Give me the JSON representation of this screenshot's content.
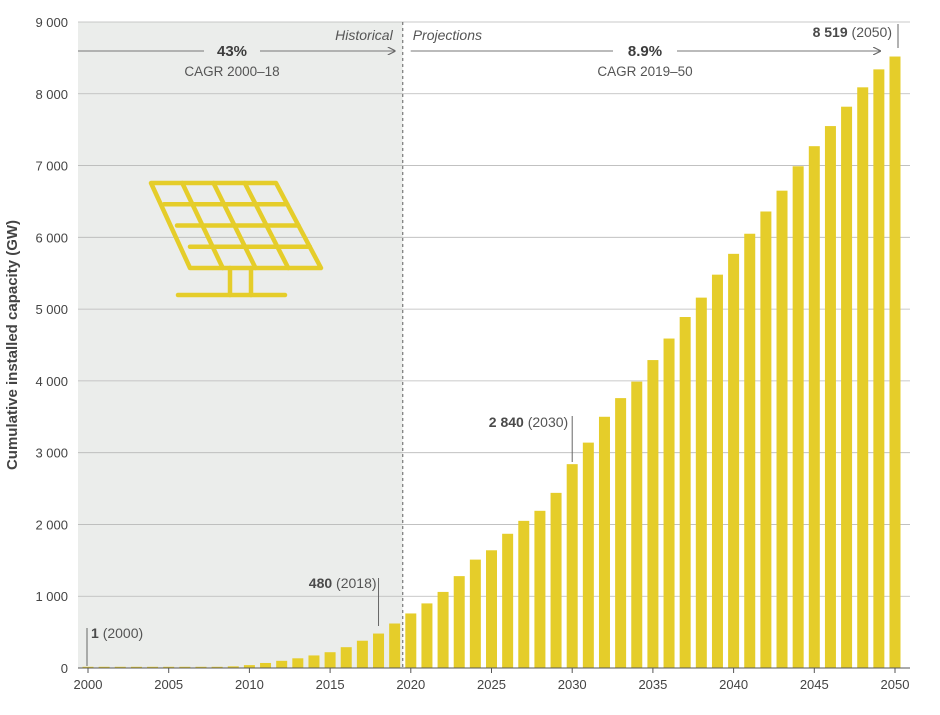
{
  "chart_data": {
    "type": "bar",
    "ylabel": "Cumulative installed capacity (GW)",
    "ylim": [
      0,
      9000
    ],
    "yticks": [
      0,
      1000,
      2000,
      3000,
      4000,
      5000,
      6000,
      7000,
      8000,
      9000
    ],
    "ytick_labels": [
      "0",
      "1 000",
      "2 000",
      "3 000",
      "4 000",
      "5 000",
      "6 000",
      "7 000",
      "8 000",
      "9 000"
    ],
    "xticks": [
      2000,
      2005,
      2010,
      2015,
      2020,
      2025,
      2030,
      2035,
      2040,
      2045,
      2050
    ],
    "xtick_labels": [
      "2000",
      "2005",
      "2010",
      "2015",
      "2020",
      "2025",
      "2030",
      "2035",
      "2040",
      "2045",
      "2050"
    ],
    "grid": true,
    "bar_color": "#e5cd2a",
    "historical_shade": "#ebedeb",
    "x": [
      2000,
      2001,
      2002,
      2003,
      2004,
      2005,
      2006,
      2007,
      2008,
      2009,
      2010,
      2011,
      2012,
      2013,
      2014,
      2015,
      2016,
      2017,
      2018,
      2019,
      2020,
      2021,
      2022,
      2023,
      2024,
      2025,
      2026,
      2027,
      2028,
      2029,
      2030,
      2031,
      2032,
      2033,
      2034,
      2035,
      2036,
      2037,
      2038,
      2039,
      2040,
      2041,
      2042,
      2043,
      2044,
      2045,
      2046,
      2047,
      2048,
      2049,
      2050
    ],
    "values": [
      1,
      2,
      2,
      3,
      4,
      5,
      7,
      9,
      15,
      23,
      40,
      70,
      100,
      135,
      175,
      220,
      290,
      380,
      480,
      620,
      760,
      900,
      1060,
      1280,
      1510,
      1640,
      1870,
      2050,
      2190,
      2440,
      2840,
      3140,
      3500,
      3760,
      3990,
      4290,
      4590,
      4890,
      5160,
      5480,
      5770,
      6050,
      6360,
      6650,
      6990,
      7270,
      7550,
      7820,
      8090,
      8340,
      8519
    ],
    "historical_period": {
      "label": "Historical",
      "from": 2000,
      "to": 2019
    },
    "projection_period": {
      "label": "Projections",
      "from": 2020,
      "to": 2050
    },
    "cagr": [
      {
        "value": "43%",
        "label": "CAGR 2000–18"
      },
      {
        "value": "8.9%",
        "label": "CAGR 2019–50"
      }
    ],
    "annotations": [
      {
        "year": 2000,
        "value_text": "1",
        "year_text": "(2000)"
      },
      {
        "year": 2018,
        "value_text": "480",
        "year_text": "(2018)"
      },
      {
        "year": 2030,
        "value_text": "2 840",
        "year_text": "(2030)"
      },
      {
        "year": 2050,
        "value_text": "8 519",
        "year_text": "(2050)"
      }
    ],
    "icon": "solar-panel-icon"
  }
}
